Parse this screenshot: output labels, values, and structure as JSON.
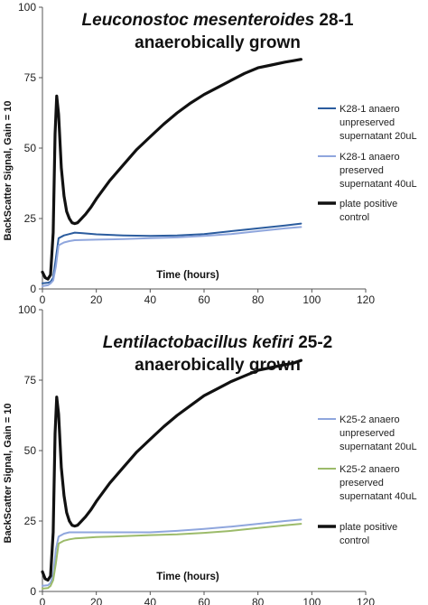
{
  "chart_data": [
    {
      "type": "line",
      "title": "anaerobically grown",
      "title_italic": "Leuconostoc mesenteroides",
      "title_suffix": " 28-1",
      "xlabel": "Time (hours)",
      "ylabel": "BackScatter Signal, Gain = 10",
      "xlim": [
        0,
        120
      ],
      "ylim": [
        0,
        100
      ],
      "xticks": [
        0,
        20,
        40,
        60,
        80,
        100,
        120
      ],
      "yticks": [
        0,
        25,
        50,
        75,
        100
      ],
      "legend_position": "right",
      "series": [
        {
          "name": "K28-1 anaero unpreserved supernatant 20uL",
          "legend_lines": [
            "K28-1 anaero",
            "unpreserved",
            "supernatant 20uL"
          ],
          "color": "#2b5c9e",
          "x": [
            0,
            2,
            3,
            4,
            5,
            6,
            8,
            10,
            12,
            15,
            20,
            30,
            40,
            50,
            60,
            70,
            80,
            90,
            96
          ],
          "y": [
            2,
            2.2,
            2.5,
            4,
            11,
            18,
            19,
            19.5,
            20,
            19.8,
            19.4,
            19,
            18.8,
            19,
            19.5,
            20.5,
            21.5,
            22.5,
            23.2
          ]
        },
        {
          "name": "K28-1 anaero preserved supernatant 40uL",
          "legend_lines": [
            "K28-1 anaero",
            "preserved",
            "supernatant 40uL"
          ],
          "color": "#8fa6dd",
          "x": [
            0,
            2,
            3,
            4,
            5,
            6,
            8,
            10,
            12,
            15,
            20,
            30,
            40,
            50,
            60,
            70,
            80,
            90,
            96
          ],
          "y": [
            1,
            1.3,
            2,
            3,
            8,
            15.5,
            16.5,
            17,
            17.3,
            17.4,
            17.5,
            17.7,
            18,
            18.3,
            18.8,
            19.5,
            20.5,
            21.5,
            22
          ]
        },
        {
          "name": "plate positive control",
          "legend_lines": [
            "plate positive",
            "control"
          ],
          "color": "#111111",
          "x": [
            0,
            1,
            2,
            3,
            4,
            4.7,
            5.3,
            6,
            7,
            8,
            9,
            10,
            11,
            12,
            13,
            14,
            16,
            18,
            20,
            25,
            30,
            35,
            40,
            45,
            50,
            55,
            60,
            65,
            70,
            75,
            80,
            85,
            90,
            93,
            96
          ],
          "y": [
            6,
            4,
            3.5,
            5,
            20,
            55,
            68.5,
            62,
            43,
            33,
            27.5,
            25,
            23.5,
            23.2,
            23.5,
            24.5,
            26.5,
            29,
            32,
            38.5,
            44,
            49.5,
            54,
            58.5,
            62.5,
            66,
            69,
            71.5,
            74,
            76.5,
            78.5,
            79.5,
            80.5,
            81,
            81.5
          ]
        }
      ]
    },
    {
      "type": "line",
      "title": "anaerobically grown",
      "title_italic": "Lentilactobacillus kefiri",
      "title_suffix": " 25-2",
      "xlabel": "Time (hours)",
      "ylabel": "BackScatter Signal, Gain = 10",
      "xlim": [
        0,
        120
      ],
      "ylim": [
        0,
        100
      ],
      "xticks": [
        0,
        20,
        40,
        60,
        80,
        100,
        120
      ],
      "yticks": [
        0,
        25,
        50,
        75,
        100
      ],
      "legend_position": "right",
      "series": [
        {
          "name": "K25-2 anaero unpreserved supernatant 20uL",
          "legend_lines": [
            "K25-2 anaero",
            "unpreserved",
            "supernatant 20uL"
          ],
          "color": "#8fa6dd",
          "x": [
            0,
            2,
            3,
            4,
            5,
            6,
            8,
            10,
            12,
            15,
            20,
            30,
            40,
            50,
            60,
            70,
            80,
            90,
            96
          ],
          "y": [
            2,
            2.2,
            3,
            6,
            15,
            19.5,
            20.5,
            21,
            21,
            21,
            21,
            21,
            21,
            21.5,
            22.2,
            23,
            24,
            25,
            25.5
          ]
        },
        {
          "name": "K25-2 anaero preserved supernatant 40uL",
          "legend_lines": [
            "K25-2 anaero",
            "preserved",
            "supernatant 40uL"
          ],
          "color": "#9cbb6a",
          "x": [
            0,
            2,
            3,
            4,
            5,
            6,
            8,
            10,
            12,
            15,
            20,
            30,
            40,
            50,
            60,
            70,
            80,
            90,
            96
          ],
          "y": [
            1,
            1.2,
            2,
            4,
            10,
            17,
            18,
            18.5,
            18.8,
            19,
            19.3,
            19.6,
            20,
            20.3,
            20.8,
            21.5,
            22.5,
            23.5,
            24
          ]
        },
        {
          "name": "plate positive control",
          "legend_lines": [
            "plate positive",
            "control"
          ],
          "color": "#111111",
          "x": [
            0,
            1,
            2,
            3,
            4,
            4.7,
            5.3,
            6,
            7,
            8,
            9,
            10,
            11,
            12,
            13,
            14,
            16,
            18,
            20,
            25,
            30,
            35,
            40,
            45,
            50,
            55,
            60,
            65,
            70,
            75,
            80,
            85,
            90,
            93,
            96
          ],
          "y": [
            7,
            4.5,
            4,
            5.5,
            21,
            56,
            69,
            63,
            44,
            34,
            28,
            25,
            23.5,
            23.2,
            23.5,
            24.5,
            26.5,
            29,
            32,
            38.5,
            44,
            49.5,
            54,
            58.5,
            62.5,
            66,
            69.5,
            72,
            74.5,
            76.5,
            78.5,
            79.5,
            80.5,
            81,
            82
          ]
        }
      ]
    }
  ]
}
